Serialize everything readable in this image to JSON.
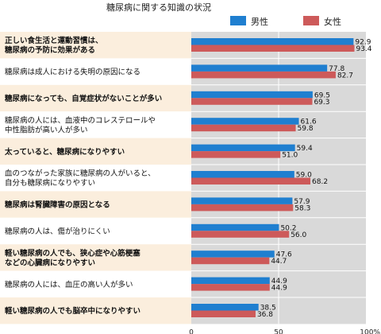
{
  "chart_data": {
    "type": "bar",
    "orientation": "horizontal",
    "title": "糖尿病に関する知識の状況",
    "xlim": [
      0,
      100
    ],
    "xticks": [
      "0",
      "50",
      "100%"
    ],
    "grid": true,
    "legend_position": "top-right",
    "categories": [
      [
        "正しい食生活と運動習慣は、",
        "糖尿病の予防に効果がある"
      ],
      [
        "糖尿病は成人における失明の原因になる"
      ],
      [
        "糖尿病になっても、自覚症状がないことが多い"
      ],
      [
        "糖尿病の人には、血液中のコレステロールや",
        "中性脂肪が高い人が多い"
      ],
      [
        "太っていると、糖尿病になりやすい"
      ],
      [
        "血のつながった家族に糖尿病の人がいると、",
        "自分も糖尿病になりやすい"
      ],
      [
        "糖尿病は腎臓障害の原因となる"
      ],
      [
        "糖尿病の人は、傷が治りにくい"
      ],
      [
        "軽い糖尿病の人でも、狭心症や心筋梗塞",
        "などの心臓病になりやすい"
      ],
      [
        "糖尿病の人には、血圧の高い人が多い"
      ],
      [
        "軽い糖尿病の人でも脳卒中になりやすい"
      ]
    ],
    "category_emphasis": [
      true,
      false,
      true,
      false,
      true,
      false,
      true,
      false,
      true,
      false,
      true
    ],
    "series": [
      {
        "name": "男性",
        "color": "#1f7fd0",
        "values": [
          92.9,
          77.8,
          69.5,
          61.6,
          59.4,
          59.0,
          57.9,
          50.2,
          47.6,
          44.9,
          38.5
        ],
        "labels": [
          "92.9",
          "77.8",
          "69.5",
          "61.6",
          "59.4",
          "59.0",
          "57.9",
          "50.2",
          "47.6",
          "44.9",
          "38.5"
        ]
      },
      {
        "name": "女性",
        "color": "#cd5a5a",
        "values": [
          93.4,
          82.7,
          69.3,
          59.8,
          51.0,
          68.2,
          58.3,
          56.0,
          44.7,
          44.9,
          36.8
        ],
        "labels": [
          "93.4",
          "82.7",
          "69.3",
          "59.8",
          "51.0",
          "68.2",
          "58.3",
          "56.0",
          "44.7",
          "44.9",
          "36.8"
        ]
      }
    ],
    "colors": {
      "row_shaded": "#fbeedd",
      "row_plain": "#ffffff",
      "plot_fill": "#d9d9d9",
      "grid_line": "#ffffff"
    }
  }
}
